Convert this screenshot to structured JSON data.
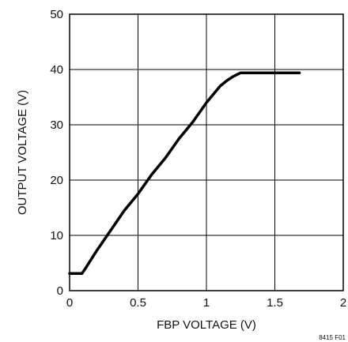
{
  "chart_data": {
    "type": "line",
    "xlabel": "FBP VOLTAGE (V)",
    "ylabel": "OUTPUT VOLTAGE (V)",
    "xlim": [
      0,
      2
    ],
    "ylim": [
      0,
      50
    ],
    "x_ticks": [
      0,
      0.5,
      1,
      1.5,
      2
    ],
    "y_ticks": [
      0,
      10,
      20,
      30,
      40,
      50
    ],
    "x_tick_labels": [
      "0",
      "0.5",
      "1",
      "1.5",
      "2"
    ],
    "y_tick_labels": [
      "0",
      "10",
      "20",
      "30",
      "40",
      "50"
    ],
    "grid": true,
    "series": [
      {
        "color": "#000000",
        "x": [
          0,
          0.09,
          0.12,
          0.2,
          0.3,
          0.4,
          0.5,
          0.6,
          0.7,
          0.8,
          0.9,
          1.0,
          1.1,
          1.15,
          1.2,
          1.25,
          1.27,
          1.4,
          1.5,
          1.6,
          1.68
        ],
        "y": [
          3.1,
          3.1,
          4.2,
          7.3,
          10.9,
          14.5,
          17.5,
          21.0,
          24.0,
          27.5,
          30.5,
          34.0,
          37.0,
          38.0,
          38.8,
          39.4,
          39.4,
          39.4,
          39.4,
          39.4,
          39.4
        ]
      }
    ]
  },
  "figure_id": "8415 F01"
}
